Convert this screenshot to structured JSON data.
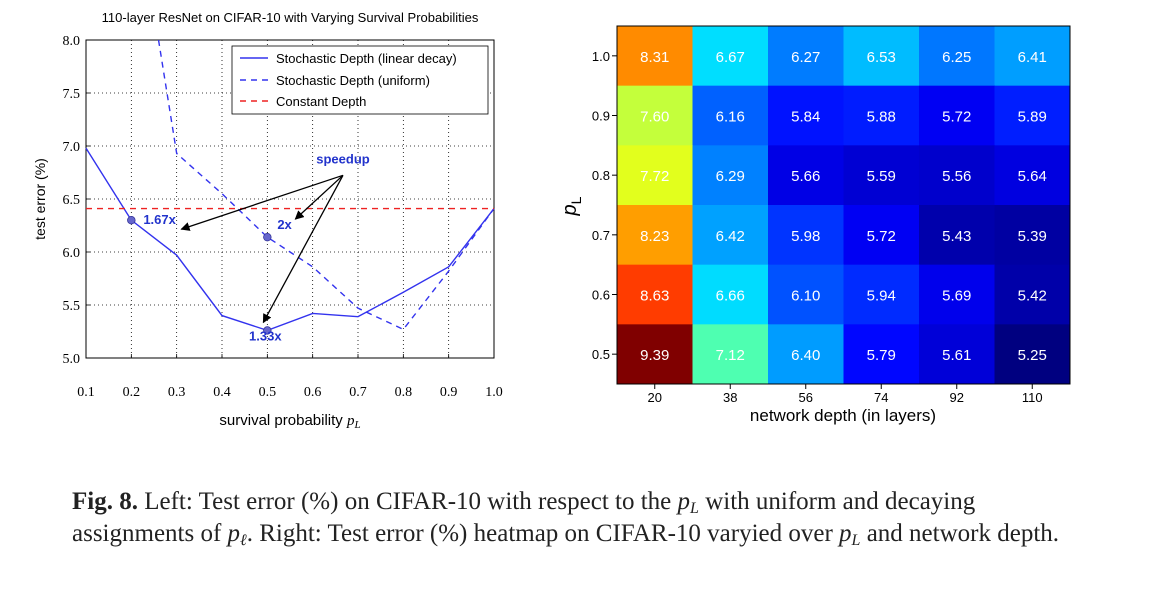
{
  "chart_data": [
    {
      "type": "line",
      "title": "110-layer ResNet on CIFAR-10 with Varying Survival Probabilities",
      "xlabel": "survival probability",
      "xlabel_symbol": "p",
      "xlabel_subscript": "L",
      "ylabel": "test error (%)",
      "xlim": [
        0.1,
        1.0
      ],
      "ylim": [
        5.0,
        8.0
      ],
      "xticks": [
        "0.1",
        "0.2",
        "0.3",
        "0.4",
        "0.5",
        "0.6",
        "0.7",
        "0.8",
        "0.9",
        "1.0"
      ],
      "yticks": [
        "5.0",
        "5.5",
        "6.0",
        "6.5",
        "7.0",
        "7.5",
        "8.0"
      ],
      "grid": true,
      "legend_position": "top-right",
      "series": [
        {
          "name": "Stochastic Depth (linear decay)",
          "style": "solid",
          "color": "#3333ee",
          "x": [
            0.1,
            0.2,
            0.3,
            0.4,
            0.5,
            0.6,
            0.7,
            0.8,
            0.9,
            1.0
          ],
          "y": [
            6.98,
            6.3,
            5.97,
            5.4,
            5.26,
            5.42,
            5.39,
            5.62,
            5.86,
            6.41
          ]
        },
        {
          "name": "Stochastic Depth (uniform)",
          "style": "dashed",
          "color": "#3333ee",
          "x": [
            0.26,
            0.3,
            0.4,
            0.5,
            0.6,
            0.7,
            0.8,
            0.9,
            1.0
          ],
          "y": [
            8.0,
            6.93,
            6.55,
            6.14,
            5.86,
            5.47,
            5.27,
            5.82,
            6.41
          ]
        },
        {
          "name": "Constant Depth",
          "style": "dashed",
          "color": "#ee2222",
          "x": [
            0.1,
            1.0
          ],
          "y": [
            6.41,
            6.41
          ]
        }
      ],
      "markers": [
        {
          "x": 0.2,
          "y": 6.3,
          "label": "1.67x"
        },
        {
          "x": 0.5,
          "y": 6.14,
          "label": "2x"
        },
        {
          "x": 0.5,
          "y": 5.26,
          "label": "1.33x"
        }
      ],
      "annotation": {
        "label": "speedup",
        "x": 0.7,
        "y": 6.78
      }
    },
    {
      "type": "heatmap",
      "xlabel": "network depth (in layers)",
      "ylabel_symbol": "p",
      "ylabel_subscript": "L",
      "x_categories": [
        "20",
        "38",
        "56",
        "74",
        "92",
        "110"
      ],
      "y_categories": [
        "1.0",
        "0.9",
        "0.8",
        "0.7",
        "0.6",
        "0.5"
      ],
      "values": [
        [
          "8.31",
          "6.67",
          "6.27",
          "6.53",
          "6.25",
          "6.41"
        ],
        [
          "7.60",
          "6.16",
          "5.84",
          "5.88",
          "5.72",
          "5.89"
        ],
        [
          "7.72",
          "6.29",
          "5.66",
          "5.59",
          "5.56",
          "5.64"
        ],
        [
          "8.23",
          "6.42",
          "5.98",
          "5.72",
          "5.43",
          "5.39"
        ],
        [
          "8.63",
          "6.66",
          "6.10",
          "5.94",
          "5.69",
          "5.42"
        ],
        [
          "9.39",
          "7.12",
          "6.40",
          "5.79",
          "5.61",
          "5.25"
        ]
      ],
      "colormap": "jet",
      "color_range": [
        5.25,
        9.39
      ]
    }
  ],
  "caption": {
    "label": "Fig. 8.",
    "text_1": "Left: Test error (%) on CIFAR-10 with respect to the",
    "sym_1": "p",
    "sub_1": "L",
    "text_2": "with uniform and decaying assignments of",
    "sym_2": "p",
    "sub_2": "ℓ",
    "text_3": ". Right: Test error (%) heatmap on CIFAR-10 varyied over",
    "sym_3": "p",
    "sub_3": "L",
    "text_4": "and network depth."
  }
}
